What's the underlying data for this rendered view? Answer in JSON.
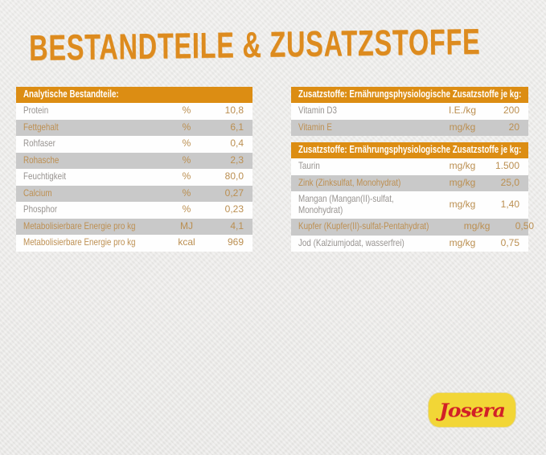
{
  "page": {
    "title": "BESTANDTEILE & ZUSATZSTOFFE"
  },
  "colors": {
    "accent_orange": "#dc8d13",
    "title_orange": "#dd8b1e",
    "row_alt_gray": "#c9c9c9",
    "label_gray": "#979390",
    "value_tan": "#bb8f51",
    "background": "#ebeae8",
    "logo_yellow": "#f2d636",
    "logo_red": "#d22027"
  },
  "analytics_table": {
    "header": "Analytische Bestandteile:",
    "rows": [
      {
        "label": "Protein",
        "unit": "%",
        "value": "10,8"
      },
      {
        "label": "Fettgehalt",
        "unit": "%",
        "value": "6,1"
      },
      {
        "label": "Rohfaser",
        "unit": "%",
        "value": "0,4"
      },
      {
        "label": "Rohasche",
        "unit": "%",
        "value": "2,3"
      },
      {
        "label": "Feuchtigkeit",
        "unit": "%",
        "value": "80,0"
      },
      {
        "label": "Calcium",
        "unit": "%",
        "value": "0,27"
      },
      {
        "label": "Phosphor",
        "unit": "%",
        "value": "0,23"
      },
      {
        "label": "Metabolisierbare Energie pro kg",
        "unit": "MJ",
        "value": "4,1"
      },
      {
        "label": "Metabolisierbare Energie pro kg",
        "unit": "kcal",
        "value": "969"
      }
    ]
  },
  "additives_table_1": {
    "header": "Zusatzstoffe: Ernährungsphysiologische Zusatzstoffe je kg:",
    "rows": [
      {
        "label": "Vitamin D3",
        "unit": "I.E./kg",
        "value": "200"
      },
      {
        "label": "Vitamin E",
        "unit": "mg/kg",
        "value": "20"
      }
    ]
  },
  "additives_table_2": {
    "header": "Zusatzstoffe: Ernährungsphysiologische Zusatzstoffe je kg:",
    "rows": [
      {
        "label": "Taurin",
        "unit": "mg/kg",
        "value": "1.500"
      },
      {
        "label": "Zink (Zinksulfat, Monohydrat)",
        "unit": "mg/kg",
        "value": "25,0"
      },
      {
        "label": "Mangan (Mangan(II)-sulfat, Monohydrat)",
        "unit": "mg/kg",
        "value": "1,40"
      },
      {
        "label": "Kupfer (Kupfer(II)-sulfat-Pentahydrat)",
        "unit": "mg/kg",
        "value": "0,50"
      },
      {
        "label": "Jod (Kalziumjodat, wasserfrei)",
        "unit": "mg/kg",
        "value": "0,75"
      }
    ]
  },
  "logo": {
    "brand": "Josera"
  }
}
